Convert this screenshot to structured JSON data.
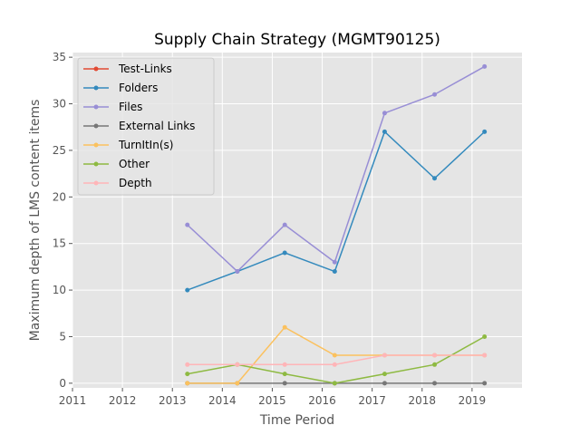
{
  "chart_data": {
    "type": "line",
    "title": "Supply Chain Strategy (MGMT90125)",
    "xlabel": "Time Period",
    "ylabel": "Maximum depth of LMS content items",
    "xlim": [
      2011,
      2020
    ],
    "ylim": [
      -0.5,
      35.5
    ],
    "xticks": [
      2011,
      2012,
      2013,
      2014,
      2015,
      2016,
      2017,
      2018,
      2019
    ],
    "yticks": [
      0,
      5,
      10,
      15,
      20,
      25,
      30,
      35
    ],
    "grid": true,
    "legend_position": "top-left",
    "x": [
      2013.3,
      2014.3,
      2015.25,
      2016.25,
      2017.25,
      2018.25,
      2019.25
    ],
    "series": [
      {
        "name": "Test-Links",
        "color": "#E24A33",
        "values": [
          null,
          null,
          null,
          null,
          null,
          null,
          null
        ]
      },
      {
        "name": "Folders",
        "color": "#348ABD",
        "values": [
          10,
          12,
          14,
          12,
          27,
          22,
          27
        ]
      },
      {
        "name": "Files",
        "color": "#988ED5",
        "values": [
          17,
          12,
          17,
          13,
          29,
          31,
          34
        ]
      },
      {
        "name": "External Links",
        "color": "#777777",
        "values": [
          0,
          0,
          0,
          0,
          0,
          0,
          0
        ]
      },
      {
        "name": "TurnItIn(s)",
        "color": "#FBC15E",
        "values": [
          0,
          0,
          6,
          3,
          3,
          3,
          3
        ]
      },
      {
        "name": "Other",
        "color": "#8EBA42",
        "values": [
          1,
          2,
          1,
          0,
          1,
          2,
          5
        ]
      },
      {
        "name": "Depth",
        "color": "#FFB5B8",
        "values": [
          2,
          2,
          2,
          2,
          3,
          3,
          3
        ]
      }
    ]
  }
}
